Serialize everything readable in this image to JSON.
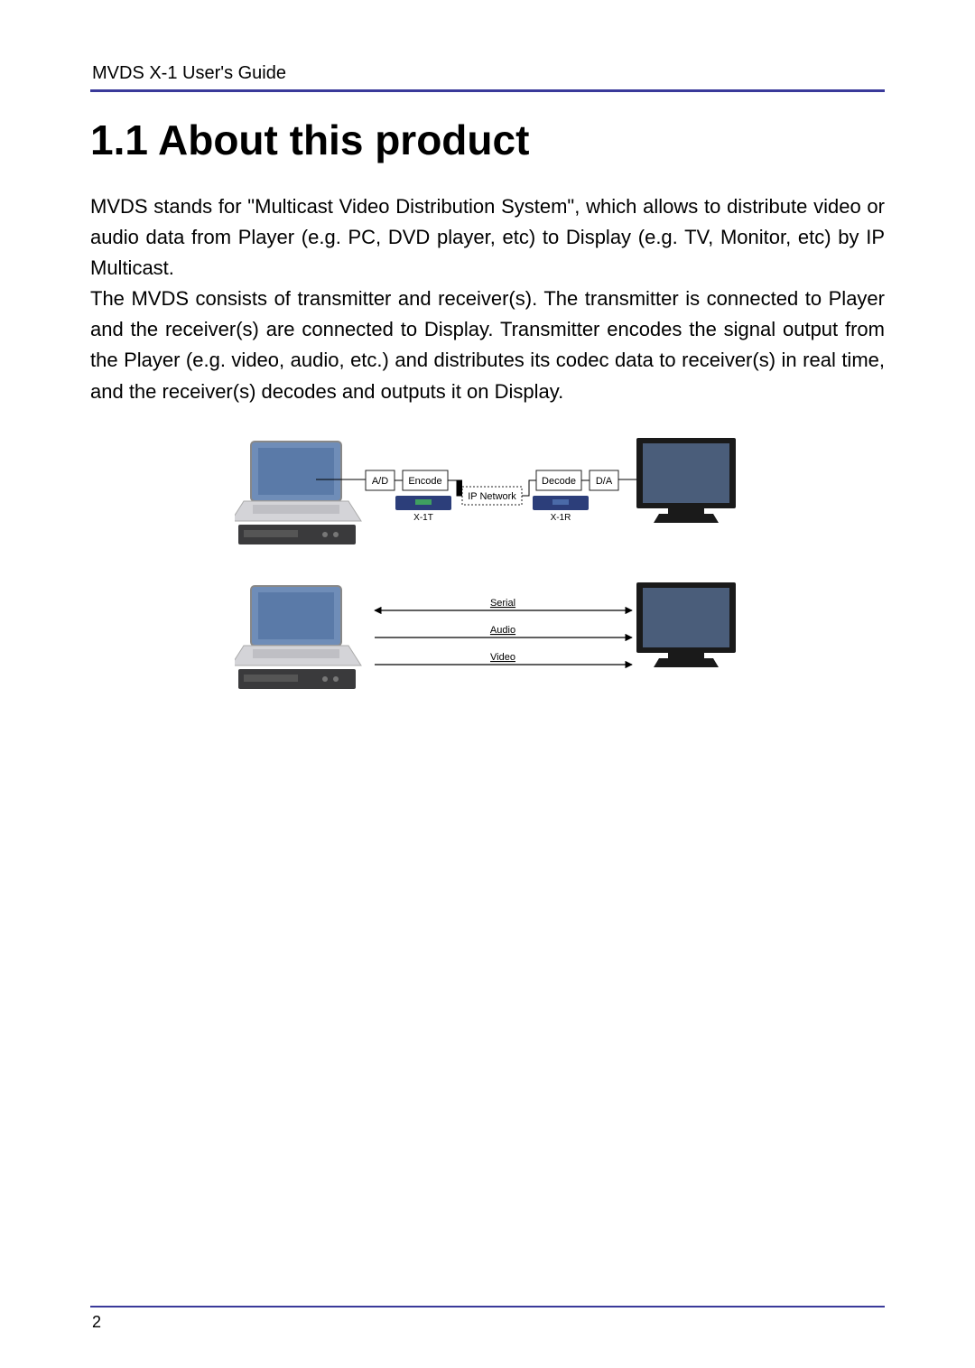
{
  "header": {
    "text": "MVDS X-1 User's Guide"
  },
  "title": "1.1 About this product",
  "paragraph": "MVDS stands for \"Multicast Video Distribution System\", which allows to distribute video or audio data from Player (e.g. PC, DVD player, etc) to Display (e.g. TV, Monitor, etc) by IP Multicast.\nThe MVDS consists of transmitter and receiver(s). The transmitter is connected to Player and the receiver(s) are connected to Display. Transmitter encodes the signal output from the Player (e.g. video, audio, etc.) and distributes its codec data to receiver(s) in real time, and the receiver(s) decodes and outputs it on Display.",
  "diagram": {
    "labels": {
      "ad": "A/D",
      "encode": "Encode",
      "ip": "IP Network",
      "decode": "Decode",
      "da": "D/A",
      "x1t": "X-1T",
      "x1r": "X-1R",
      "serial": "Serial",
      "audio": "Audio",
      "video": "Video"
    },
    "colors": {
      "accent": "#3a3a9a",
      "laptop_screen": "#6f8db8",
      "laptop_body": "#c8c8cc",
      "tv_screen": "#4a5d7a",
      "tv_frame": "#1a1a1a",
      "device_blue": "#2c3e7a",
      "dvd": "#3a3a3c",
      "box_stroke": "#222"
    }
  },
  "page_number": "2"
}
